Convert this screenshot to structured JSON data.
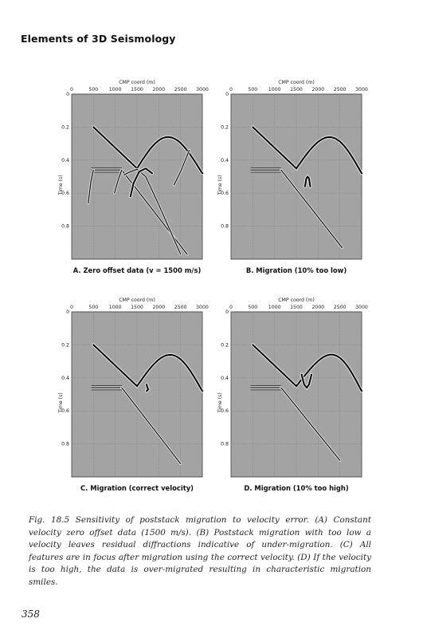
{
  "running_head": "Elements of 3D Seismology",
  "page_number": "358",
  "figure": {
    "caption": "Fig. 18.5 Sensitivity of poststack migration to velocity error. (A) Constant velocity zero offset data (1500 m/s). (B) Poststack migration with too low a velocity leaves residual diffractions indicative of under-migration. (C) All features are in focus after migration using the correct velocity. (D) If the velocity is too high, the data is over-migrated resulting in characteristic migration smiles.",
    "panels": [
      {
        "id": "A",
        "title": "A. Zero offset data (v = 1500 m/s)"
      },
      {
        "id": "B",
        "title": "B. Migration (10% too low)"
      },
      {
        "id": "C",
        "title": "C. Migration (correct velocity)"
      },
      {
        "id": "D",
        "title": "D. Migration (10% too high)"
      }
    ]
  },
  "chart_data": [
    {
      "type": "heatmap",
      "title": "A. Zero offset data (v = 1500 m/s)",
      "xlabel": "CMP coord (m)",
      "ylabel": "Time (s)",
      "xticks": [
        "0",
        "500",
        "1000",
        "1500",
        "2000",
        "2500",
        "3000"
      ],
      "yticks": [
        "0",
        "0.2",
        "0.4",
        "0.6",
        "0.8"
      ],
      "xlim": [
        0,
        3000
      ],
      "ylim": [
        0,
        1.0
      ],
      "grid": true,
      "colormap": "grayscale"
    },
    {
      "type": "heatmap",
      "title": "B. Migration (10% too low)",
      "xlabel": "CMP coord (m)",
      "ylabel": "Time (s)",
      "xticks": [
        "0",
        "500",
        "1000",
        "1500",
        "2000",
        "2500",
        "3000"
      ],
      "yticks": [
        "0",
        "0.2",
        "0.4",
        "0.6",
        "0.8"
      ],
      "xlim": [
        0,
        3000
      ],
      "ylim": [
        0,
        1.0
      ],
      "grid": true,
      "colormap": "grayscale"
    },
    {
      "type": "heatmap",
      "title": "C. Migration (correct velocity)",
      "xlabel": "CMP coord (m)",
      "ylabel": "Time (s)",
      "xticks": [
        "0",
        "500",
        "1000",
        "1500",
        "2000",
        "2500",
        "3000"
      ],
      "yticks": [
        "0",
        "0.2",
        "0.4",
        "0.6",
        "0.8"
      ],
      "xlim": [
        0,
        3000
      ],
      "ylim": [
        0,
        1.0
      ],
      "grid": true,
      "colormap": "grayscale"
    },
    {
      "type": "heatmap",
      "title": "D. Migration (10% too high)",
      "xlabel": "CMP coord (m)",
      "ylabel": "Time (s)",
      "xticks": [
        "0",
        "500",
        "1000",
        "1500",
        "2000",
        "2500",
        "3000"
      ],
      "yticks": [
        "0",
        "0.2",
        "0.4",
        "0.6",
        "0.8"
      ],
      "xlim": [
        0,
        3000
      ],
      "ylim": [
        0,
        1.0
      ],
      "grid": true,
      "colormap": "grayscale"
    }
  ]
}
